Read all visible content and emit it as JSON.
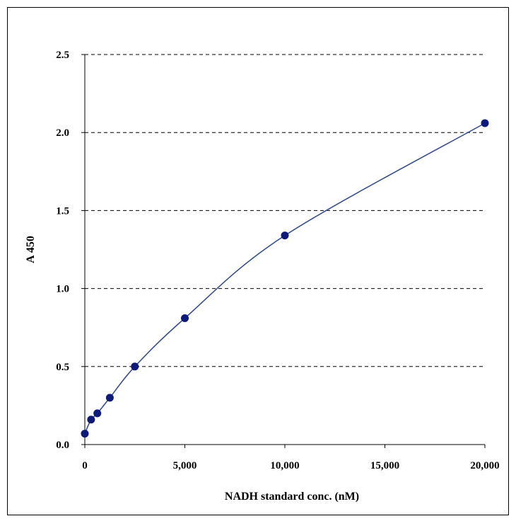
{
  "chart_data": {
    "type": "scatter",
    "title": "",
    "xlabel": "NADH standard conc. (nM)",
    "ylabel": "A 450",
    "xlim": [
      0,
      20000
    ],
    "ylim": [
      0,
      2.5
    ],
    "x_ticks": [
      0,
      5000,
      10000,
      15000,
      20000
    ],
    "x_tick_labels": [
      "0",
      "5,000",
      "10,000",
      "15,000",
      "20,000"
    ],
    "y_ticks": [
      0,
      0.5,
      1.0,
      1.5,
      2.0,
      2.5
    ],
    "y_tick_labels": [
      "0.0",
      "0.5",
      "1.0",
      "1.5",
      "2.0",
      "2.5"
    ],
    "grid": "horizontal dashed",
    "legend": "none",
    "series": [
      {
        "points": [
          {
            "x": 0,
            "y": 0.07
          },
          {
            "x": 312.5,
            "y": 0.16
          },
          {
            "x": 625,
            "y": 0.2
          },
          {
            "x": 1250,
            "y": 0.3
          },
          {
            "x": 2500,
            "y": 0.5
          },
          {
            "x": 5000,
            "y": 0.81
          },
          {
            "x": 10000,
            "y": 1.34
          },
          {
            "x": 20000,
            "y": 2.06
          }
        ],
        "trendline": "smooth curve through points",
        "marker_color": "#0d1a7a",
        "line_color": "#2e4a8c"
      }
    ]
  }
}
